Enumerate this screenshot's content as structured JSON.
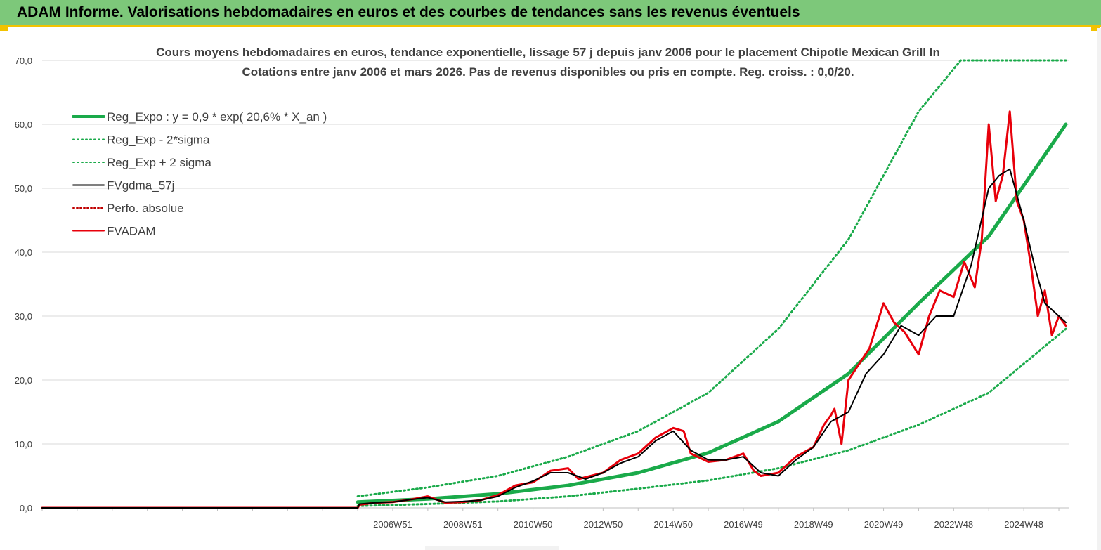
{
  "header": {
    "title": "ADAM Informe. Valorisations hebdomadaires en euros et des courbes de tendances sans les revenus éventuels"
  },
  "colors": {
    "banner": "#7dc87a",
    "accent": "#f2c200",
    "reg_expo": "#1aaa4a",
    "fvgdma": "#000000",
    "fvadam": "#e8000b",
    "perfo": "#c00000"
  },
  "chart_data": {
    "type": "line",
    "title_lines": [
      "Cours moyens hebdomadaires en euros, tendance exponentielle, lissage 57 j depuis janv 2006 pour le placement Chipotle Mexican Grill In",
      "Cotations entre janv 2006 et mars 2026. Pas de revenus disponibles ou pris en compte. Reg. croiss. : 0,0/20."
    ],
    "ylim": [
      0,
      70
    ],
    "y_ticks": [
      "0,0",
      "10,0",
      "20,0",
      "30,0",
      "40,0",
      "50,0",
      "60,0",
      "70,0"
    ],
    "xlim": [
      1997,
      2026.3
    ],
    "x_ticks": [
      {
        "x": 2007.0,
        "label": "2006W51"
      },
      {
        "x": 2009.0,
        "label": "2008W51"
      },
      {
        "x": 2011.0,
        "label": "2010W50"
      },
      {
        "x": 2013.0,
        "label": "2012W50"
      },
      {
        "x": 2015.0,
        "label": "2014W50"
      },
      {
        "x": 2017.0,
        "label": "2016W49"
      },
      {
        "x": 2019.0,
        "label": "2018W49"
      },
      {
        "x": 2021.0,
        "label": "2020W49"
      },
      {
        "x": 2023.0,
        "label": "2022W48"
      },
      {
        "x": 2025.0,
        "label": "2024W48"
      }
    ],
    "legend": {
      "placement": "top-left",
      "entries": [
        {
          "key": "reg_expo",
          "label": "Reg_Expo : y = 0,9 * exp( 20,6% *  X_an )"
        },
        {
          "key": "reg_minus",
          "label": "Reg_Exp - 2*sigma"
        },
        {
          "key": "reg_plus",
          "label": "Reg_Exp + 2 sigma"
        },
        {
          "key": "fvgdma",
          "label": "FVgdma_57j"
        },
        {
          "key": "perfo",
          "label": "Perfo. absolue"
        },
        {
          "key": "fvadam",
          "label": "FVADAM"
        }
      ]
    },
    "series": [
      {
        "key": "reg_expo",
        "name": "Reg_Expo : y = 0,9 * exp( 20,6% *  X_an )",
        "x": [
          2006.0,
          2008.0,
          2010.0,
          2012.0,
          2014.0,
          2016.0,
          2018.0,
          2020.0,
          2022.0,
          2024.0,
          2026.2
        ],
        "y": [
          0.9,
          1.4,
          2.2,
          3.5,
          5.5,
          8.6,
          13.5,
          21.0,
          32.0,
          42.5,
          60.0
        ]
      },
      {
        "key": "reg_minus",
        "name": "Reg_Exp - 2*sigma",
        "x": [
          2006.0,
          2008.0,
          2010.0,
          2012.0,
          2014.0,
          2016.0,
          2018.0,
          2020.0,
          2022.0,
          2024.0,
          2026.2
        ],
        "y": [
          0.3,
          0.6,
          1.0,
          1.8,
          3.0,
          4.3,
          6.2,
          9.0,
          13.0,
          18.0,
          28.0
        ]
      },
      {
        "key": "reg_plus",
        "name": "Reg_Exp + 2 sigma",
        "x": [
          2006.0,
          2008.0,
          2010.0,
          2012.0,
          2014.0,
          2016.0,
          2018.0,
          2020.0,
          2022.0,
          2023.2,
          2026.2
        ],
        "y": [
          1.8,
          3.2,
          5.0,
          8.0,
          12.0,
          18.0,
          28.0,
          42.0,
          62.0,
          70.0,
          70.0
        ]
      },
      {
        "key": "fvgdma",
        "name": "FVgdma_57j",
        "x": [
          1997.0,
          2006.0,
          2006.05,
          2006.5,
          2007.0,
          2007.5,
          2008.0,
          2008.5,
          2009.0,
          2009.5,
          2010.0,
          2010.5,
          2011.0,
          2011.5,
          2012.0,
          2012.5,
          2013.0,
          2013.5,
          2014.0,
          2014.5,
          2015.0,
          2015.5,
          2016.0,
          2016.5,
          2017.0,
          2017.5,
          2018.0,
          2018.5,
          2019.0,
          2019.5,
          2020.0,
          2020.5,
          2021.0,
          2021.5,
          2022.0,
          2022.5,
          2023.0,
          2023.5,
          2024.0,
          2024.3,
          2024.6,
          2025.0,
          2025.3,
          2025.6,
          2026.0,
          2026.2
        ],
        "y": [
          0,
          0,
          0.6,
          0.8,
          0.9,
          1.3,
          1.6,
          0.9,
          1.0,
          1.2,
          1.8,
          3.2,
          4.2,
          5.5,
          5.5,
          4.5,
          5.5,
          7.0,
          8.0,
          10.5,
          12.0,
          9.0,
          7.5,
          7.5,
          8.0,
          5.5,
          5.0,
          7.5,
          9.5,
          13.5,
          15.0,
          21.0,
          24.0,
          28.5,
          27.0,
          30.0,
          30.0,
          38.0,
          50.0,
          52.0,
          53.0,
          45.0,
          38.0,
          32.0,
          30.0,
          29.0
        ]
      },
      {
        "key": "fvadam",
        "name": "FVADAM",
        "x": [
          1997.0,
          2006.0,
          2006.05,
          2006.5,
          2007.0,
          2007.5,
          2008.0,
          2008.5,
          2009.0,
          2009.5,
          2010.0,
          2010.5,
          2011.0,
          2011.5,
          2012.0,
          2012.3,
          2012.5,
          2013.0,
          2013.5,
          2014.0,
          2014.5,
          2015.0,
          2015.3,
          2015.5,
          2016.0,
          2016.5,
          2017.0,
          2017.3,
          2017.5,
          2018.0,
          2018.5,
          2019.0,
          2019.3,
          2019.5,
          2019.6,
          2019.8,
          2020.0,
          2020.3,
          2020.6,
          2021.0,
          2021.3,
          2021.6,
          2022.0,
          2022.3,
          2022.6,
          2023.0,
          2023.3,
          2023.6,
          2023.8,
          2024.0,
          2024.2,
          2024.4,
          2024.6,
          2024.8,
          2025.0,
          2025.2,
          2025.4,
          2025.6,
          2025.8,
          2026.0,
          2026.2
        ],
        "y": [
          0,
          0,
          0.5,
          0.8,
          0.9,
          1.3,
          1.8,
          0.8,
          0.9,
          1.2,
          2.0,
          3.5,
          4.0,
          5.8,
          6.2,
          4.5,
          4.8,
          5.5,
          7.5,
          8.5,
          11.0,
          12.5,
          12.0,
          8.5,
          7.2,
          7.5,
          8.5,
          5.8,
          5.0,
          5.5,
          8.0,
          9.5,
          13.0,
          14.5,
          15.5,
          10.0,
          20.0,
          22.5,
          25.0,
          32.0,
          29.0,
          27.5,
          24.0,
          30.0,
          34.0,
          33.0,
          38.5,
          34.5,
          42.0,
          60.0,
          48.0,
          52.0,
          62.0,
          48.0,
          45.0,
          38.0,
          30.0,
          34.0,
          27.0,
          30.0,
          28.5
        ]
      }
    ]
  }
}
